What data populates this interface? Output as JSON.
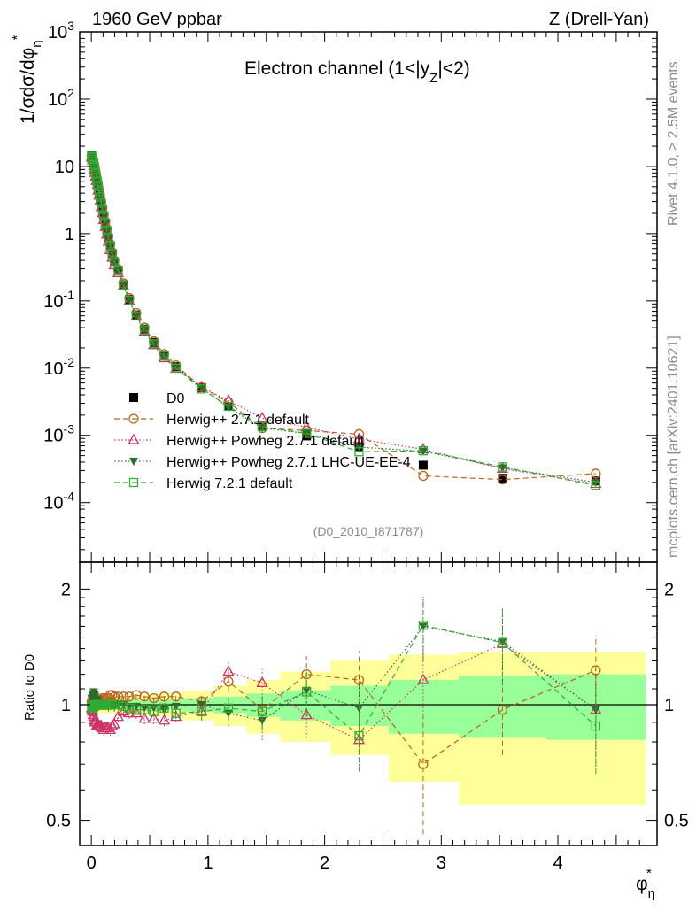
{
  "header": {
    "left_title": "1960 GeV ppbar",
    "right_title": "Z (Drell-Yan)",
    "panel_title": "Electron channel (1<|y",
    "panel_title_sub": "Z",
    "panel_title_end": "|<2)",
    "side_label_top": "Rivet 4.1.0, ≥ 2.5M events",
    "side_label_bottom": "mcplots.cern.ch [arXiv:2401.10621]",
    "analysis_id": "(D0_2010_I871787)"
  },
  "chart_data": [
    {
      "type": "scatter",
      "title": "Electron channel (1<|y_Z|<2)",
      "xlabel": "φ*_η",
      "ylabel": "1/σdσ/dφ*_η",
      "yscale": "log",
      "xlim": [
        -0.1,
        4.85
      ],
      "ylim": [
        1.3e-05,
        1000
      ],
      "y_tick_labels": [
        "10^-4",
        "10^-3",
        "10^-2",
        "10^-1",
        "1",
        "10",
        "10^2",
        "10^3"
      ],
      "x": [
        0.002,
        0.006,
        0.011,
        0.016,
        0.021,
        0.026,
        0.031,
        0.037,
        0.043,
        0.05,
        0.058,
        0.066,
        0.075,
        0.085,
        0.095,
        0.106,
        0.119,
        0.132,
        0.146,
        0.162,
        0.179,
        0.197,
        0.23,
        0.275,
        0.325,
        0.385,
        0.455,
        0.535,
        0.625,
        0.725,
        0.945,
        1.175,
        1.465,
        1.845,
        2.295,
        2.845,
        3.525,
        4.325
      ],
      "series": [
        {
          "name": "D0",
          "color": "#000000",
          "marker": "filled-square",
          "values": [
            14.2,
            13.6,
            12.8,
            11.9,
            10.9,
            9.9,
            8.9,
            7.9,
            6.9,
            5.9,
            5.0,
            4.2,
            3.5,
            2.85,
            2.3,
            1.85,
            1.45,
            1.12,
            0.87,
            0.66,
            0.5,
            0.38,
            0.28,
            0.175,
            0.105,
            0.062,
            0.038,
            0.024,
            0.0155,
            0.0105,
            0.0051,
            0.0027,
            0.0014,
            0.00098,
            0.00068,
            0.00036,
            0.00023,
            0.00021
          ]
        },
        {
          "name": "Herwig++ 2.7.1 default",
          "color": "#b8651b",
          "marker": "open-circle",
          "line": "dashed",
          "values": [
            14.5,
            13.8,
            13.0,
            12.1,
            11.0,
            10.0,
            9.0,
            8.0,
            7.0,
            6.0,
            5.1,
            4.3,
            3.6,
            2.95,
            2.4,
            1.92,
            1.5,
            1.17,
            0.91,
            0.7,
            0.53,
            0.4,
            0.295,
            0.183,
            0.11,
            0.066,
            0.04,
            0.025,
            0.0162,
            0.011,
            0.0052,
            0.0031,
            0.00128,
            0.00118,
            0.00104,
            0.00025,
            0.00022,
            0.00027
          ]
        },
        {
          "name": "Herwig++ Powheg 2.7.1 default",
          "color": "#cc3366",
          "marker": "open-triangle",
          "line": "dotted",
          "values": [
            13.9,
            13.2,
            12.3,
            11.2,
            10.1,
            9.0,
            8.0,
            7.1,
            6.1,
            5.2,
            4.4,
            3.7,
            3.1,
            2.5,
            2.0,
            1.6,
            1.26,
            0.97,
            0.76,
            0.57,
            0.44,
            0.34,
            0.26,
            0.168,
            0.1,
            0.059,
            0.035,
            0.022,
            0.0141,
            0.0098,
            0.0052,
            0.0033,
            0.0018,
            0.00132,
            0.00088,
            0.00062,
            0.00032,
            0.00019
          ]
        },
        {
          "name": "Herwig++ Powheg 2.7.1 LHC-UE-EE-4",
          "color": "#2e6b2e",
          "marker": "filled-triangle-down",
          "line": "dotted",
          "values": [
            14.8,
            14.0,
            13.2,
            12.3,
            11.3,
            10.2,
            9.2,
            8.1,
            7.1,
            6.1,
            5.2,
            4.3,
            3.6,
            2.9,
            2.35,
            1.9,
            1.48,
            1.13,
            0.87,
            0.66,
            0.5,
            0.38,
            0.28,
            0.175,
            0.104,
            0.061,
            0.037,
            0.023,
            0.0148,
            0.0104,
            0.0051,
            0.0026,
            0.00128,
            0.00107,
            0.00067,
            0.00058,
            0.00033,
            0.0002
          ]
        },
        {
          "name": "Herwig 7.2.1 default",
          "color": "#33aa33",
          "marker": "open-square",
          "line": "dashed",
          "values": [
            14.0,
            13.4,
            12.6,
            11.7,
            10.8,
            9.8,
            8.9,
            7.9,
            6.9,
            5.9,
            5.0,
            4.2,
            3.5,
            2.85,
            2.3,
            1.85,
            1.45,
            1.12,
            0.87,
            0.66,
            0.5,
            0.38,
            0.28,
            0.173,
            0.102,
            0.06,
            0.037,
            0.023,
            0.0152,
            0.01,
            0.0049,
            0.0027,
            0.00135,
            0.00107,
            0.00057,
            0.00059,
            0.00034,
            0.00018
          ]
        }
      ]
    },
    {
      "type": "scatter",
      "xlabel": "φ*_η",
      "ylabel": "Ratio to D0",
      "yscale": "log",
      "xlim": [
        -0.1,
        4.85
      ],
      "ylim": [
        0.43,
        2.35
      ],
      "y_ticks": [
        0.5,
        1,
        2
      ],
      "x_ticks": [
        0,
        1,
        2,
        3,
        4
      ],
      "band_edges": [
        0,
        0.09,
        0.18,
        0.3,
        0.5,
        0.78,
        1.05,
        1.33,
        1.62,
        2.05,
        2.55,
        3.15,
        3.9,
        4.75
      ],
      "band_inner": [
        [
          0.97,
          1.03
        ],
        [
          0.97,
          1.03
        ],
        [
          0.975,
          1.025
        ],
        [
          0.97,
          1.03
        ],
        [
          0.97,
          1.03
        ],
        [
          0.96,
          1.04
        ],
        [
          0.95,
          1.05
        ],
        [
          0.93,
          1.07
        ],
        [
          0.91,
          1.09
        ],
        [
          0.88,
          1.12
        ],
        [
          0.84,
          1.16
        ],
        [
          0.82,
          1.19
        ],
        [
          0.81,
          1.2
        ],
        [
          0.81,
          1.2
        ]
      ],
      "band_outer": [
        [
          0.95,
          1.05
        ],
        [
          0.95,
          1.05
        ],
        [
          0.95,
          1.05
        ],
        [
          0.94,
          1.06
        ],
        [
          0.93,
          1.07
        ],
        [
          0.91,
          1.09
        ],
        [
          0.88,
          1.12
        ],
        [
          0.84,
          1.16
        ],
        [
          0.8,
          1.22
        ],
        [
          0.74,
          1.3
        ],
        [
          0.63,
          1.35
        ],
        [
          0.55,
          1.37
        ],
        [
          0.55,
          1.37
        ],
        [
          0.55,
          1.37
        ]
      ],
      "series": [
        {
          "name": "Herwig++ 2.7.1 default",
          "color": "#b8651b",
          "marker": "open-circle",
          "line": "dashed",
          "values": [
            1.02,
            1.01,
            1.02,
            1.02,
            1.01,
            1.01,
            1.01,
            1.01,
            1.01,
            1.02,
            1.02,
            1.02,
            1.03,
            1.03,
            1.04,
            1.04,
            1.03,
            1.04,
            1.04,
            1.06,
            1.06,
            1.05,
            1.05,
            1.05,
            1.05,
            1.06,
            1.05,
            1.04,
            1.05,
            1.05,
            1.02,
            1.15,
            0.97,
            1.2,
            1.16,
            0.7,
            0.97,
            1.23
          ],
          "errors": [
            0.03,
            0.03,
            0.03,
            0.03,
            0.03,
            0.03,
            0.03,
            0.03,
            0.03,
            0.03,
            0.03,
            0.03,
            0.03,
            0.03,
            0.03,
            0.03,
            0.03,
            0.03,
            0.03,
            0.03,
            0.03,
            0.03,
            0.03,
            0.03,
            0.03,
            0.03,
            0.03,
            0.03,
            0.03,
            0.03,
            0.05,
            0.07,
            0.1,
            0.14,
            0.22,
            0.24,
            0.23,
            0.29
          ]
        },
        {
          "name": "Herwig++ Powheg 2.7.1 default",
          "color": "#cc3366",
          "marker": "open-triangle",
          "line": "dotted",
          "values": [
            0.98,
            0.97,
            0.96,
            0.94,
            0.93,
            0.91,
            0.9,
            0.9,
            0.88,
            0.88,
            0.88,
            0.88,
            0.88,
            0.88,
            0.87,
            0.86,
            0.87,
            0.87,
            0.87,
            0.86,
            0.88,
            0.89,
            0.93,
            0.96,
            0.95,
            0.95,
            0.92,
            0.92,
            0.91,
            0.93,
            0.96,
            1.22,
            1.14,
            0.94,
            0.81,
            1.16,
            1.44,
            0.97
          ],
          "errors": [
            0.03,
            0.03,
            0.03,
            0.03,
            0.03,
            0.03,
            0.03,
            0.03,
            0.03,
            0.03,
            0.03,
            0.03,
            0.03,
            0.03,
            0.03,
            0.03,
            0.03,
            0.03,
            0.03,
            0.03,
            0.03,
            0.03,
            0.03,
            0.03,
            0.03,
            0.03,
            0.03,
            0.03,
            0.03,
            0.03,
            0.05,
            0.07,
            0.1,
            0.12,
            0.13,
            0.24,
            0.28,
            0.24
          ]
        },
        {
          "name": "Herwig++ Powheg 2.7.1 LHC-UE-EE-4",
          "color": "#2e6b2e",
          "marker": "filled-triangle-down",
          "line": "dotted",
          "values": [
            1.04,
            1.03,
            1.05,
            1.06,
            1.08,
            1.06,
            1.05,
            1.03,
            1.03,
            1.03,
            1.02,
            1.01,
            1.0,
            1.0,
            1.0,
            1.0,
            1.0,
            1.0,
            0.99,
            1.0,
            1.0,
            0.99,
            1.0,
            1.0,
            0.99,
            0.99,
            0.98,
            0.98,
            0.97,
            0.99,
            1.0,
            0.95,
            0.91,
            1.09,
            0.98,
            1.6,
            1.46,
            0.97
          ],
          "errors": [
            0.03,
            0.03,
            0.03,
            0.03,
            0.03,
            0.03,
            0.03,
            0.03,
            0.03,
            0.03,
            0.03,
            0.03,
            0.03,
            0.03,
            0.03,
            0.03,
            0.03,
            0.03,
            0.03,
            0.03,
            0.03,
            0.03,
            0.03,
            0.03,
            0.03,
            0.03,
            0.03,
            0.03,
            0.03,
            0.03,
            0.05,
            0.07,
            0.1,
            0.14,
            0.2,
            0.3,
            0.33,
            0.28
          ]
        },
        {
          "name": "Herwig 7.2.1 default",
          "color": "#33aa33",
          "marker": "open-square",
          "line": "dashed",
          "values": [
            0.99,
            0.98,
            0.99,
            0.98,
            0.99,
            0.99,
            1.0,
            1.0,
            1.0,
            1.0,
            1.0,
            1.0,
            1.0,
            1.0,
            1.0,
            1.0,
            1.0,
            1.0,
            1.0,
            1.0,
            1.0,
            1.0,
            1.0,
            0.99,
            0.98,
            0.97,
            0.97,
            0.96,
            0.98,
            0.95,
            0.96,
            0.98,
            0.96,
            1.08,
            0.83,
            1.61,
            1.45,
            0.88
          ],
          "errors": [
            0.03,
            0.03,
            0.03,
            0.03,
            0.03,
            0.03,
            0.03,
            0.03,
            0.03,
            0.03,
            0.03,
            0.03,
            0.03,
            0.03,
            0.03,
            0.03,
            0.03,
            0.03,
            0.03,
            0.03,
            0.03,
            0.03,
            0.03,
            0.03,
            0.03,
            0.03,
            0.03,
            0.03,
            0.03,
            0.03,
            0.05,
            0.07,
            0.1,
            0.14,
            0.16,
            0.3,
            0.33,
            0.22
          ]
        }
      ]
    }
  ]
}
